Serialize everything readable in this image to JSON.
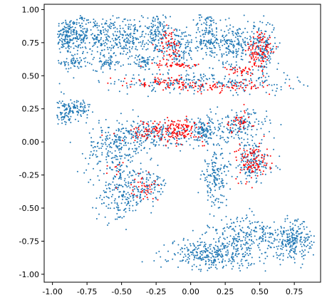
{
  "chart_data": {
    "type": "scatter",
    "title": "",
    "xlabel": "",
    "ylabel": "",
    "xlim": [
      -1.06,
      0.94
    ],
    "ylim": [
      -1.06,
      1.04
    ],
    "grid": false,
    "legend": "none",
    "x_ticks": [
      "-1.00",
      "-0.75",
      "-0.50",
      "-0.25",
      "0.00",
      "0.25",
      "0.50",
      "0.75"
    ],
    "x_tick_values": [
      -1.0,
      -0.75,
      -0.5,
      -0.25,
      0.0,
      0.25,
      0.5,
      0.75
    ],
    "y_ticks": [
      "1.00",
      "0.75",
      "0.50",
      "0.25",
      "0.00",
      "-0.25",
      "-0.50",
      "-0.75",
      "-1.00"
    ],
    "y_tick_values": [
      1.0,
      0.75,
      0.5,
      0.25,
      0.0,
      -0.25,
      -0.5,
      -0.75,
      -1.0
    ],
    "series": [
      {
        "color": "#1f77b4",
        "clusters": [
          {
            "cx": -0.9,
            "cy": 0.8,
            "sx": 0.04,
            "sy": 0.07,
            "n": 140
          },
          {
            "cx": -0.8,
            "cy": 0.82,
            "sx": 0.03,
            "sy": 0.08,
            "n": 110
          },
          {
            "cx": -0.85,
            "cy": 0.6,
            "sx": 0.05,
            "sy": 0.03,
            "n": 60
          },
          {
            "cx": -0.65,
            "cy": 0.8,
            "sx": 0.06,
            "sy": 0.07,
            "n": 150
          },
          {
            "cx": -0.45,
            "cy": 0.78,
            "sx": 0.06,
            "sy": 0.07,
            "n": 150
          },
          {
            "cx": -0.25,
            "cy": 0.82,
            "sx": 0.05,
            "sy": 0.08,
            "n": 120
          },
          {
            "cx": -0.6,
            "cy": 0.6,
            "sx": 0.05,
            "sy": 0.03,
            "n": 60
          },
          {
            "cx": -0.35,
            "cy": 0.6,
            "sx": 0.04,
            "sy": 0.03,
            "n": 50
          },
          {
            "cx": -0.1,
            "cy": 0.72,
            "sx": 0.08,
            "sy": 0.08,
            "n": 160
          },
          {
            "cx": 0.12,
            "cy": 0.82,
            "sx": 0.05,
            "sy": 0.09,
            "n": 120
          },
          {
            "cx": 0.3,
            "cy": 0.75,
            "sx": 0.08,
            "sy": 0.08,
            "n": 200
          },
          {
            "cx": 0.52,
            "cy": 0.72,
            "sx": 0.05,
            "sy": 0.1,
            "n": 160
          },
          {
            "cx": 0.1,
            "cy": 0.45,
            "sx": 0.35,
            "sy": 0.04,
            "n": 260
          },
          {
            "cx": -0.92,
            "cy": 0.22,
            "sx": 0.03,
            "sy": 0.05,
            "n": 60
          },
          {
            "cx": -0.82,
            "cy": 0.25,
            "sx": 0.05,
            "sy": 0.04,
            "n": 90
          },
          {
            "cx": -0.3,
            "cy": 0.05,
            "sx": 0.18,
            "sy": 0.06,
            "n": 250
          },
          {
            "cx": -0.55,
            "cy": -0.05,
            "sx": 0.1,
            "sy": 0.1,
            "n": 180
          },
          {
            "cx": 0.1,
            "cy": 0.08,
            "sx": 0.06,
            "sy": 0.06,
            "n": 120
          },
          {
            "cx": 0.35,
            "cy": 0.12,
            "sx": 0.1,
            "sy": 0.06,
            "n": 150
          },
          {
            "cx": 0.45,
            "cy": -0.15,
            "sx": 0.08,
            "sy": 0.08,
            "n": 150
          },
          {
            "cx": 0.18,
            "cy": -0.28,
            "sx": 0.05,
            "sy": 0.1,
            "n": 160
          },
          {
            "cx": -0.5,
            "cy": -0.4,
            "sx": 0.09,
            "sy": 0.1,
            "n": 200
          },
          {
            "cx": -0.3,
            "cy": -0.33,
            "sx": 0.07,
            "sy": 0.06,
            "n": 80
          },
          {
            "cx": 0.15,
            "cy": -0.85,
            "sx": 0.15,
            "sy": 0.06,
            "n": 330
          },
          {
            "cx": 0.45,
            "cy": -0.72,
            "sx": 0.15,
            "sy": 0.08,
            "n": 250
          },
          {
            "cx": 0.75,
            "cy": -0.75,
            "sx": 0.08,
            "sy": 0.07,
            "n": 220
          }
        ]
      },
      {
        "color": "#ff0000",
        "clusters": [
          {
            "cx": -0.15,
            "cy": 0.72,
            "sx": 0.04,
            "sy": 0.06,
            "n": 60
          },
          {
            "cx": -0.1,
            "cy": 0.58,
            "sx": 0.1,
            "sy": 0.01,
            "n": 40
          },
          {
            "cx": 0.5,
            "cy": 0.68,
            "sx": 0.05,
            "sy": 0.08,
            "n": 110
          },
          {
            "cx": 0.35,
            "cy": 0.54,
            "sx": 0.05,
            "sy": 0.015,
            "n": 30
          },
          {
            "cx": -0.2,
            "cy": 0.45,
            "sx": 0.15,
            "sy": 0.02,
            "n": 70
          },
          {
            "cx": 0.25,
            "cy": 0.42,
            "sx": 0.2,
            "sy": 0.02,
            "n": 80
          },
          {
            "cx": -0.2,
            "cy": 0.08,
            "sx": 0.15,
            "sy": 0.04,
            "n": 120
          },
          {
            "cx": -0.08,
            "cy": 0.1,
            "sx": 0.05,
            "sy": 0.04,
            "n": 70
          },
          {
            "cx": 0.35,
            "cy": 0.15,
            "sx": 0.05,
            "sy": 0.04,
            "n": 40
          },
          {
            "cx": 0.45,
            "cy": -0.15,
            "sx": 0.06,
            "sy": 0.07,
            "n": 110
          },
          {
            "cx": -0.35,
            "cy": -0.35,
            "sx": 0.06,
            "sy": 0.05,
            "n": 40
          },
          {
            "cx": -0.55,
            "cy": -0.2,
            "sx": 0.03,
            "sy": 0.03,
            "n": 8
          }
        ]
      }
    ]
  }
}
